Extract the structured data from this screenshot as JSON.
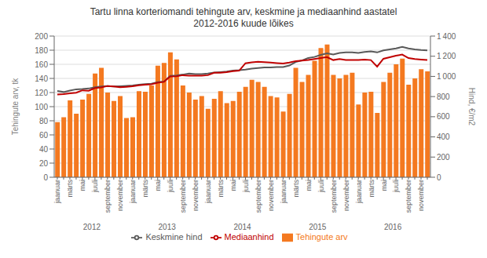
{
  "chart_data": {
    "type": "bar",
    "title": "Tartu linna korteriomandi tehingute arv, keskmine ja mediaanhind aastatel\n2012-2016 kuude lõikes",
    "y_label": "Tehingute arv, tk",
    "y2_label": "Hind, €/m2",
    "categories": [
      "jaanuar",
      null,
      "märts",
      null,
      "mai",
      null,
      "juuli",
      null,
      "september",
      null,
      "november",
      null,
      "jaanuar",
      null,
      "märts",
      null,
      "mai",
      null,
      "juuli",
      null,
      "september",
      null,
      "november",
      null,
      "jaanuar",
      null,
      "märts",
      null,
      "mai",
      null,
      "juuli",
      null,
      "september",
      null,
      "november",
      null,
      "jaanuar",
      null,
      "märts",
      null,
      "mai",
      null,
      "juuli",
      null,
      "september",
      null,
      "november",
      null,
      "jaanuar",
      null,
      "märts",
      null,
      "mai",
      null,
      "juuli",
      null,
      "september",
      null,
      "november",
      null
    ],
    "annotations": [
      "2012",
      "2013",
      "2014",
      "2015",
      "2016"
    ],
    "ylim": [
      0,
      200
    ],
    "yticks": [
      0,
      20,
      40,
      60,
      80,
      100,
      120,
      140,
      160,
      180,
      200
    ],
    "y2lim": [
      0,
      1400
    ],
    "y2ticks": [
      0,
      200,
      400,
      600,
      800,
      {
        "value": 1000,
        "label": "1 000"
      },
      {
        "value": 1200,
        "label": "1 200"
      },
      {
        "value": 1400,
        "label": "1 400"
      }
    ],
    "grid": true,
    "legend": "bottom",
    "series": [
      {
        "name": "Tehingute arv",
        "type": "bar",
        "color": "#F47920",
        "values": [
          78,
          85,
          109,
          90,
          110,
          118,
          147,
          155,
          120,
          108,
          115,
          84,
          85,
          122,
          121,
          130,
          158,
          162,
          177,
          167,
          130,
          120,
          110,
          115,
          97,
          111,
          122,
          105,
          108,
          121,
          128,
          138,
          135,
          128,
          115,
          113,
          93,
          118,
          155,
          135,
          145,
          165,
          183,
          188,
          145,
          140,
          145,
          148,
          103,
          120,
          121,
          91,
          135,
          148,
          160,
          168,
          131,
          140,
          153,
          150
        ]
      },
      {
        "name": "Keskmine hind",
        "type": "line",
        "axis": "y2",
        "color": "#595959",
        "values": [
          855,
          845,
          860,
          872,
          875,
          880,
          893,
          900,
          905,
          900,
          903,
          907,
          910,
          918,
          924,
          928,
          943,
          948,
          1005,
          1010,
          1018,
          1028,
          1022,
          1022,
          1028,
          1038,
          1043,
          1048,
          1058,
          1062,
          1068,
          1078,
          1083,
          1088,
          1088,
          1092,
          1093,
          1108,
          1143,
          1158,
          1182,
          1193,
          1213,
          1228,
          1218,
          1232,
          1238,
          1238,
          1232,
          1242,
          1248,
          1238,
          1258,
          1268,
          1278,
          1292,
          1278,
          1268,
          1262,
          1258
        ]
      },
      {
        "name": "Mediaanhind",
        "type": "line",
        "axis": "y2",
        "color": "#C00000",
        "values": [
          820,
          825,
          832,
          838,
          862,
          858,
          885,
          890,
          905,
          900,
          892,
          896,
          902,
          912,
          918,
          922,
          937,
          946,
          1000,
          1002,
          1012,
          1008,
          1008,
          1008,
          1012,
          1036,
          1037,
          1042,
          1052,
          1057,
          1130,
          1140,
          1145,
          1142,
          1137,
          1132,
          1127,
          1137,
          1152,
          1157,
          1162,
          1172,
          1182,
          1192,
          1162,
          1172,
          1162,
          1162,
          1162,
          1167,
          1162,
          1097,
          1175,
          1190,
          1206,
          1217,
          1182,
          1172,
          1167,
          1162
        ]
      }
    ]
  }
}
